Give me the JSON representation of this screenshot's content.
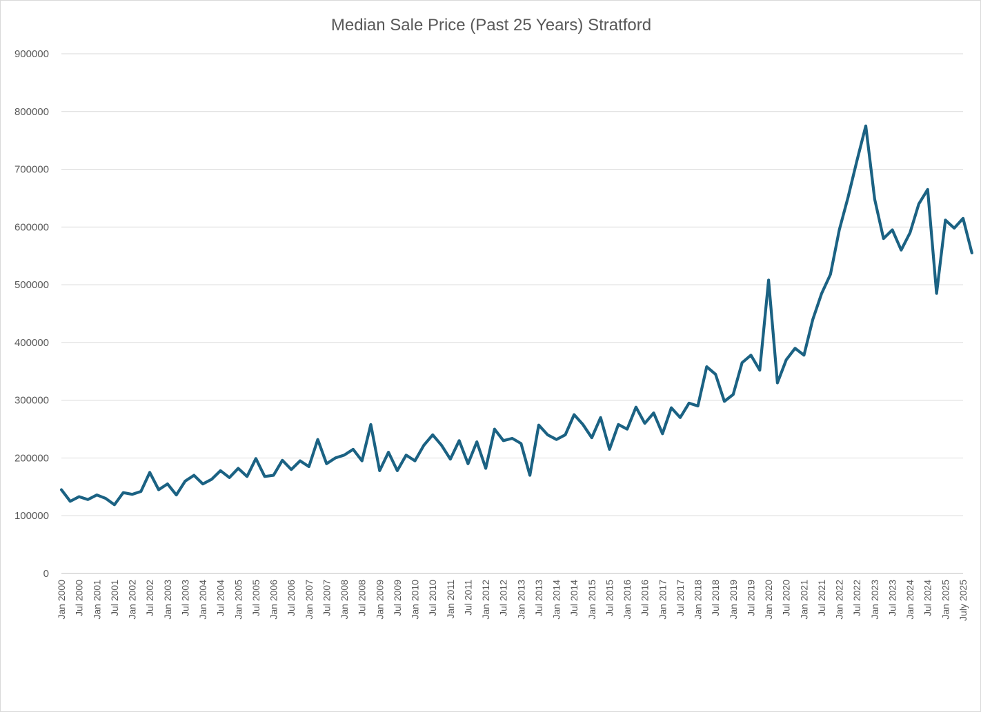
{
  "chart_data": {
    "type": "line",
    "title": "Median Sale Price (Past 25 Years) Stratford",
    "xlabel": "",
    "ylabel": "",
    "ylim": [
      0,
      900000
    ],
    "y_ticks": [
      0,
      100000,
      200000,
      300000,
      400000,
      500000,
      600000,
      700000,
      800000,
      900000
    ],
    "y_tick_labels": [
      "0",
      "100000",
      "200000",
      "300000",
      "400000",
      "500000",
      "600000",
      "700000",
      "800000",
      "900000"
    ],
    "x_tick_labels": [
      "Jan 2000",
      "Jul 2000",
      "Jan 2001",
      "Jul 2001",
      "Jan 2002",
      "Jul 2002",
      "Jan 2003",
      "Jul 2003",
      "Jan 2004",
      "Jul 2004",
      "Jan 2005",
      "Jul 2005",
      "Jan 2006",
      "Jul 2006",
      "Jan 2007",
      "Jul 2007",
      "Jan 2008",
      "Jul 2008",
      "Jan 2009",
      "Jul 2009",
      "Jan 2010",
      "Jul 2010",
      "Jan 2011",
      "Jul 2011",
      "Jan 2012",
      "Jul 2012",
      "Jan 2013",
      "Jul 2013",
      "Jan 2014",
      "Jul 2014",
      "Jan 2015",
      "Jul 2015",
      "Jan 2016",
      "Jul 2016",
      "Jan 2017",
      "Jul 2017",
      "Jan 2018",
      "Jul 2018",
      "Jan 2019",
      "Jul 2019",
      "Jan 2020",
      "Jul 2020",
      "Jan 2021",
      "Jul 2021",
      "Jan 2022",
      "Jul 2022",
      "Jan 2023",
      "Jul 2023",
      "Jan 2024",
      "Jul 2024",
      "Jan 2025",
      "July 2025"
    ],
    "grid": true,
    "legend": "none",
    "series_color": "#1b6283",
    "series": [
      {
        "points": [
          [
            "Jan 2000",
            145000
          ],
          [
            "Apr 2000",
            125000
          ],
          [
            "Jul 2000",
            133000
          ],
          [
            "Oct 2000",
            128000
          ],
          [
            "Jan 2001",
            136000
          ],
          [
            "Apr 2001",
            130000
          ],
          [
            "Jul 2001",
            119000
          ],
          [
            "Oct 2001",
            140000
          ],
          [
            "Jan 2002",
            137000
          ],
          [
            "Apr 2002",
            142000
          ],
          [
            "Jul 2002",
            175000
          ],
          [
            "Oct 2002",
            145000
          ],
          [
            "Jan 2003",
            155000
          ],
          [
            "Apr 2003",
            136000
          ],
          [
            "Jul 2003",
            160000
          ],
          [
            "Oct 2003",
            170000
          ],
          [
            "Jan 2004",
            155000
          ],
          [
            "Apr 2004",
            163000
          ],
          [
            "Jul 2004",
            178000
          ],
          [
            "Oct 2004",
            166000
          ],
          [
            "Jan 2005",
            182000
          ],
          [
            "Apr 2005",
            168000
          ],
          [
            "Jul 2005",
            199000
          ],
          [
            "Oct 2005",
            168000
          ],
          [
            "Jan 2006",
            170000
          ],
          [
            "Apr 2006",
            196000
          ],
          [
            "Jul 2006",
            180000
          ],
          [
            "Oct 2006",
            195000
          ],
          [
            "Jan 2007",
            185000
          ],
          [
            "Apr 2007",
            232000
          ],
          [
            "Jul 2007",
            190000
          ],
          [
            "Oct 2007",
            200000
          ],
          [
            "Jan 2008",
            205000
          ],
          [
            "Apr 2008",
            215000
          ],
          [
            "Jul 2008",
            195000
          ],
          [
            "Oct 2008",
            258000
          ],
          [
            "Jan 2009",
            178000
          ],
          [
            "Apr 2009",
            210000
          ],
          [
            "Jul 2009",
            178000
          ],
          [
            "Oct 2009",
            205000
          ],
          [
            "Jan 2010",
            195000
          ],
          [
            "Apr 2010",
            222000
          ],
          [
            "Jul 2010",
            240000
          ],
          [
            "Oct 2010",
            222000
          ],
          [
            "Jan 2011",
            198000
          ],
          [
            "Apr 2011",
            230000
          ],
          [
            "Jul 2011",
            190000
          ],
          [
            "Oct 2011",
            228000
          ],
          [
            "Jan 2012",
            182000
          ],
          [
            "Apr 2012",
            250000
          ],
          [
            "Jul 2012",
            230000
          ],
          [
            "Oct 2012",
            234000
          ],
          [
            "Jan 2013",
            225000
          ],
          [
            "Apr 2013",
            170000
          ],
          [
            "Jul 2013",
            257000
          ],
          [
            "Oct 2013",
            240000
          ],
          [
            "Jan 2014",
            232000
          ],
          [
            "Apr 2014",
            240000
          ],
          [
            "Jul 2014",
            275000
          ],
          [
            "Oct 2014",
            258000
          ],
          [
            "Jan 2015",
            235000
          ],
          [
            "Apr 2015",
            270000
          ],
          [
            "Jul 2015",
            215000
          ],
          [
            "Oct 2015",
            258000
          ],
          [
            "Jan 2016",
            250000
          ],
          [
            "Apr 2016",
            288000
          ],
          [
            "Jul 2016",
            260000
          ],
          [
            "Oct 2016",
            278000
          ],
          [
            "Jan 2017",
            242000
          ],
          [
            "Apr 2017",
            287000
          ],
          [
            "Jul 2017",
            270000
          ],
          [
            "Oct 2017",
            295000
          ],
          [
            "Jan 2018",
            290000
          ],
          [
            "Apr 2018",
            358000
          ],
          [
            "Jul 2018",
            345000
          ],
          [
            "Oct 2018",
            298000
          ],
          [
            "Jan 2019",
            310000
          ],
          [
            "Apr 2019",
            365000
          ],
          [
            "Jul 2019",
            378000
          ],
          [
            "Oct 2019",
            352000
          ],
          [
            "Jan 2020",
            508000
          ],
          [
            "Apr 2020",
            330000
          ],
          [
            "Jul 2020",
            370000
          ],
          [
            "Oct 2020",
            390000
          ],
          [
            "Jan 2021",
            378000
          ],
          [
            "Apr 2021",
            440000
          ],
          [
            "Jul 2021",
            485000
          ],
          [
            "Oct 2021",
            518000
          ],
          [
            "Jan 2022",
            595000
          ],
          [
            "Apr 2022",
            652000
          ],
          [
            "Jul 2022",
            715000
          ],
          [
            "Oct 2022",
            775000
          ],
          [
            "Jan 2023",
            648000
          ],
          [
            "Apr 2023",
            580000
          ],
          [
            "Jul 2023",
            595000
          ],
          [
            "Oct 2023",
            560000
          ],
          [
            "Jan 2024",
            590000
          ],
          [
            "Apr 2024",
            640000
          ],
          [
            "Jul 2024",
            665000
          ],
          [
            "Oct 2024",
            485000
          ],
          [
            "Jan 2025",
            612000
          ],
          [
            "Apr 2025",
            598000
          ],
          [
            "Jul 2025",
            615000
          ],
          [
            "Oct 2025",
            555000
          ]
        ]
      }
    ]
  }
}
